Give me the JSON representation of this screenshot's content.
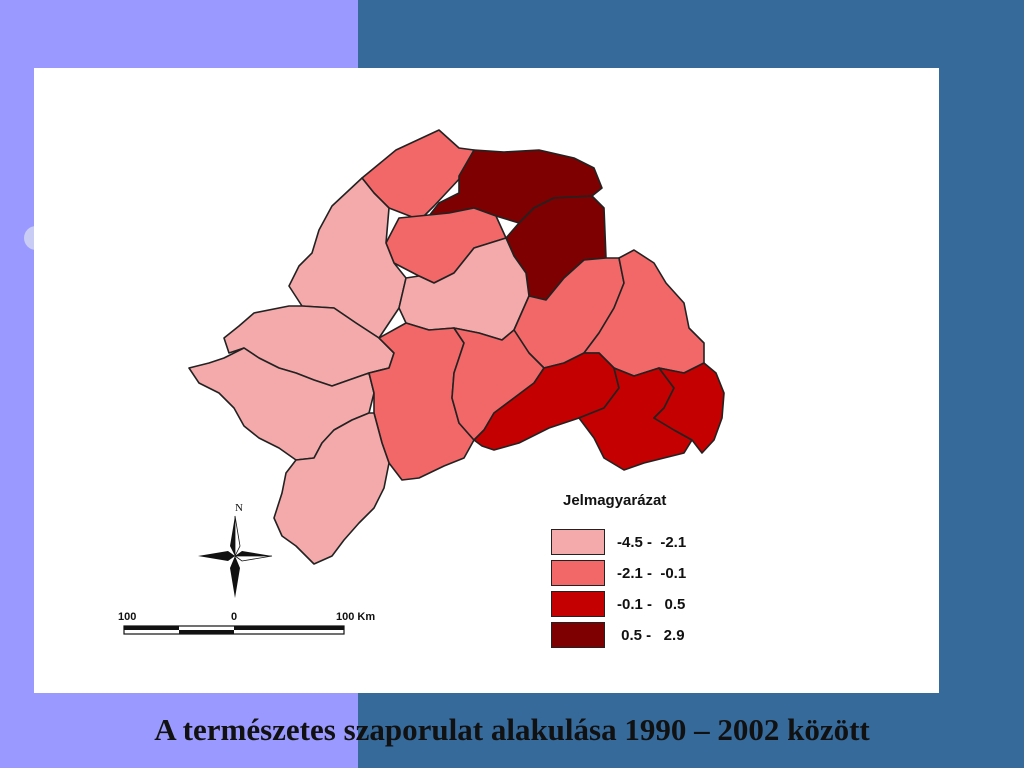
{
  "colors": {
    "left_block": "#9999ff",
    "right_background": "#356a9b",
    "class_1": "#f4aaaa",
    "class_2": "#f26767",
    "class_3": "#c40000",
    "class_4": "#7e0000",
    "border": "#222222"
  },
  "map": {
    "legend_title": "Jelmagyarázat",
    "legend": [
      {
        "label": "-4.5 -  -2.1",
        "class": "class_1"
      },
      {
        "label": "-2.1 -  -0.1",
        "class": "class_2"
      },
      {
        "label": "-0.1 -   0.5",
        "class": "class_3"
      },
      {
        "label": " 0.5 -   2.9",
        "class": "class_4"
      }
    ],
    "north_label": "N",
    "scale_labels": [
      "100",
      "0",
      "100 Km"
    ],
    "regions": [
      {
        "id": "r1",
        "class": "class_2"
      },
      {
        "id": "r2",
        "class": "class_4"
      },
      {
        "id": "r3",
        "class": "class_4"
      },
      {
        "id": "r4",
        "class": "class_2"
      },
      {
        "id": "r5",
        "class": "class_1"
      },
      {
        "id": "r6",
        "class": "class_1"
      },
      {
        "id": "r7",
        "class": "class_2"
      },
      {
        "id": "r8",
        "class": "class_2"
      },
      {
        "id": "r9",
        "class": "class_1"
      },
      {
        "id": "r10",
        "class": "class_1"
      },
      {
        "id": "r11",
        "class": "class_2"
      },
      {
        "id": "r12",
        "class": "class_2"
      },
      {
        "id": "r13",
        "class": "class_3"
      },
      {
        "id": "r14",
        "class": "class_3"
      },
      {
        "id": "r15",
        "class": "class_3"
      },
      {
        "id": "r16",
        "class": "class_1"
      }
    ]
  },
  "caption": "A természetes szaporulat alakulása 1990 – 2002 között"
}
